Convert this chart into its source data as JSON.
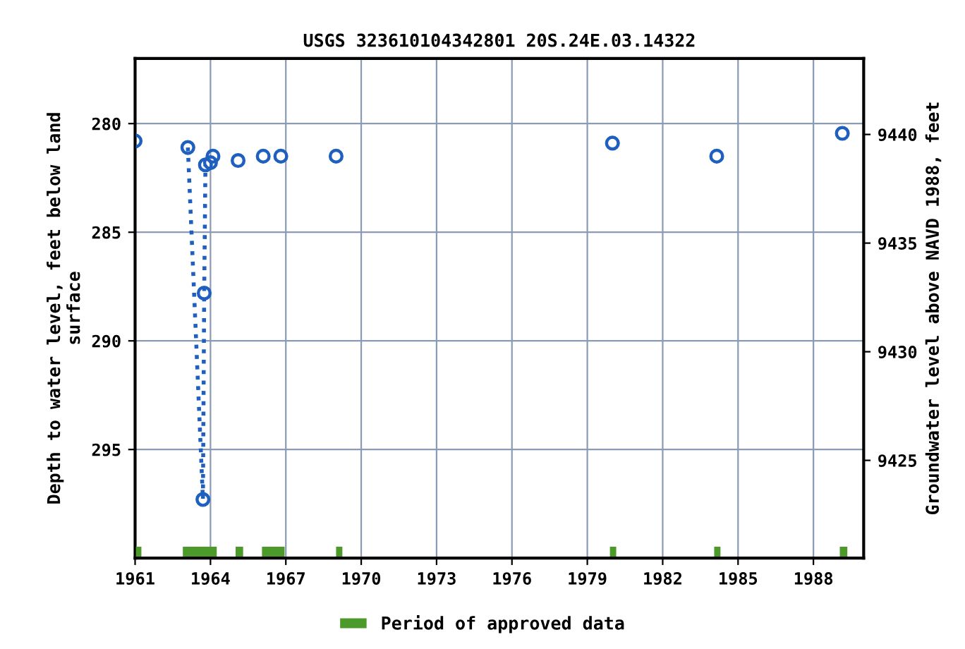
{
  "chart_data": {
    "type": "scatter",
    "title": "USGS 323610104342801 20S.24E.03.14322",
    "ylabel": "Depth to water level, feet below land\nsurface",
    "y2label": "Groundwater level above NAVD 1988, feet",
    "xlim": [
      1961,
      1990
    ],
    "xticks": [
      1961,
      1964,
      1967,
      1970,
      1973,
      1976,
      1979,
      1982,
      1985,
      1988
    ],
    "ylim": [
      300,
      277
    ],
    "yticks": [
      280,
      285,
      290,
      295
    ],
    "y2lim": [
      9420.5,
      9443.5
    ],
    "y2ticks": [
      9425,
      9430,
      9435,
      9440
    ],
    "grid": true,
    "legend": "bottom",
    "marker": "circle",
    "series": [
      {
        "type": "line",
        "line_style": "dotted",
        "color": "#1f5fc0",
        "x": [
          1963.1,
          1963.7,
          1963.75,
          1963.8
        ],
        "values": [
          281.1,
          297.3,
          287.8,
          281.9
        ]
      },
      {
        "color": "#1f5fc0",
        "x": [
          1961.0,
          1964.0,
          1964.1,
          1965.1,
          1966.1,
          1966.8,
          1969.0,
          1980.0,
          1984.15,
          1989.15
        ],
        "values": [
          280.8,
          281.8,
          281.5,
          281.7,
          281.5,
          281.5,
          281.5,
          280.9,
          281.5,
          280.45
        ]
      },
      {
        "type": "line",
        "name": "Period of approved data",
        "marker": "none",
        "line_style": "solid",
        "color": "#4c9a2a",
        "x": [
          1961.0,
          1961.25,
          null,
          1962.9,
          1964.25,
          null,
          1965.0,
          1965.3,
          null,
          1966.05,
          1966.95,
          null,
          1969.0,
          1969.25,
          null,
          1979.9,
          1980.15,
          null,
          1984.05,
          1984.3,
          null,
          1989.05,
          1989.35
        ],
        "values": [
          299.7,
          299.7,
          null,
          299.7,
          299.7,
          null,
          299.7,
          299.7,
          null,
          299.7,
          299.7,
          null,
          299.7,
          299.7,
          null,
          299.7,
          299.7,
          null,
          299.7,
          299.7,
          null,
          299.7,
          299.7
        ]
      }
    ]
  }
}
